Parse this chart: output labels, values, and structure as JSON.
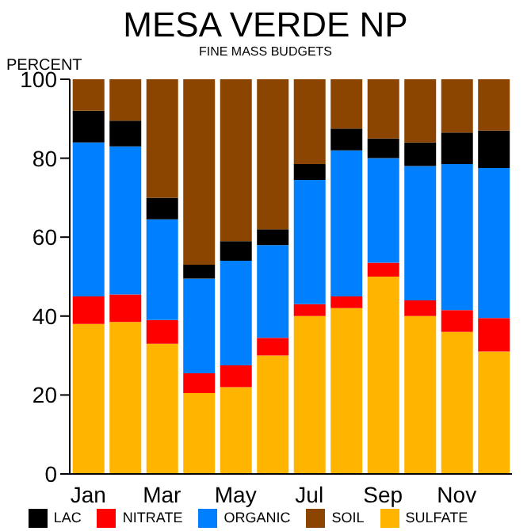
{
  "chart_data": {
    "type": "bar",
    "title": "MESA VERDE NP",
    "subtitle": "FINE MASS BUDGETS",
    "ylabel": "PERCENT",
    "stacked": true,
    "legend": "bottom",
    "grid": false,
    "categories": [
      "Jan",
      null,
      "Mar",
      null,
      "May",
      null,
      "Jul",
      null,
      "Sep",
      null,
      "Nov",
      null
    ],
    "ylim": [
      0,
      100
    ],
    "yticks": [
      0,
      20,
      40,
      60,
      80,
      100
    ],
    "series": [
      {
        "name": "SULFATE",
        "color": "#ffb400",
        "values": [
          38,
          38.5,
          33,
          20.5,
          22,
          30,
          40,
          42,
          50,
          40,
          36,
          31
        ]
      },
      {
        "name": "NITRATE",
        "color": "#ff0000",
        "values": [
          7,
          7,
          6,
          5,
          5.5,
          4.5,
          3,
          3,
          3.5,
          4,
          5.5,
          8.5
        ]
      },
      {
        "name": "ORGANIC",
        "color": "#0080ff",
        "values": [
          39,
          37.5,
          25.5,
          24,
          26.5,
          23.5,
          31.5,
          37,
          26.5,
          34,
          37,
          38
        ]
      },
      {
        "name": "LAC",
        "color": "#000000",
        "values": [
          8,
          6.5,
          5.5,
          3.5,
          5,
          4,
          4,
          5.5,
          5,
          6,
          8,
          9.5
        ]
      },
      {
        "name": "SOIL",
        "color": "#8b4500",
        "values": [
          8,
          10.5,
          30,
          47,
          41,
          38,
          21.5,
          12.5,
          15,
          16,
          13.5,
          13
        ]
      }
    ]
  }
}
